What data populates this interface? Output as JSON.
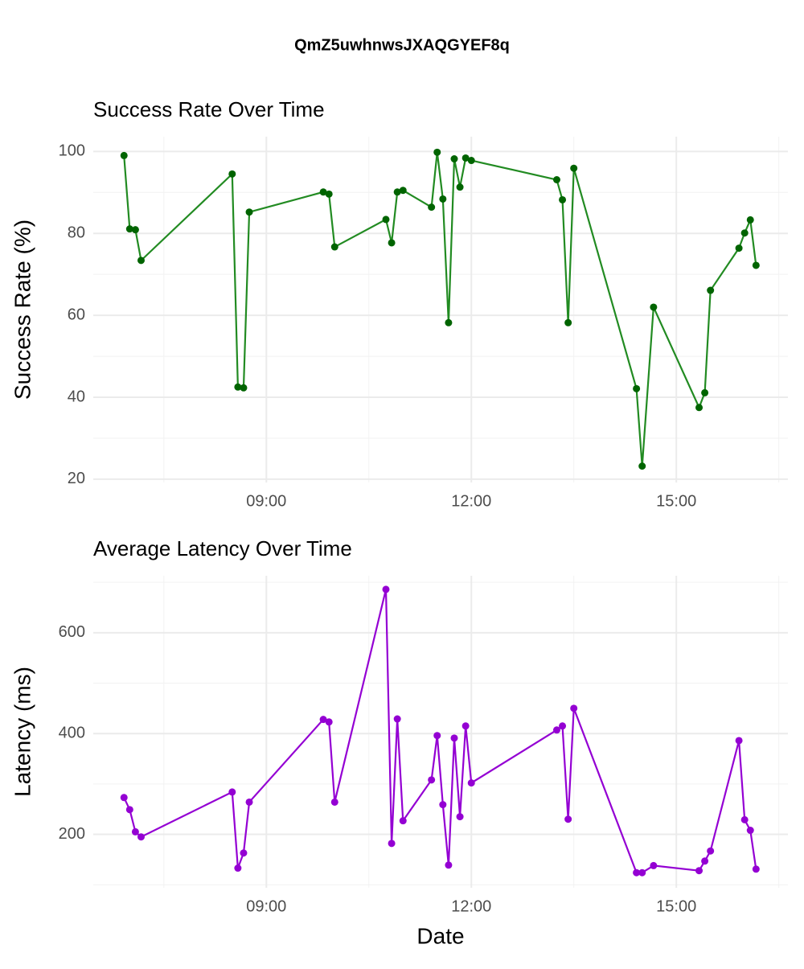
{
  "title": "QmZ5uwhnwsJXAQGYEF8q",
  "chart_data": [
    {
      "type": "line",
      "title": "Success Rate Over Time",
      "ylabel": "Success Rate (%)",
      "x": [
        "06:55",
        "07:00",
        "07:05",
        "07:10",
        "08:30",
        "08:35",
        "08:40",
        "08:45",
        "09:50",
        "09:55",
        "10:00",
        "10:45",
        "10:50",
        "10:55",
        "11:00",
        "11:25",
        "11:30",
        "11:35",
        "11:40",
        "11:45",
        "11:50",
        "11:55",
        "12:00",
        "13:15",
        "13:20",
        "13:25",
        "13:30",
        "14:25",
        "14:30",
        "14:40",
        "15:20",
        "15:25",
        "15:30",
        "15:55",
        "16:00",
        "16:05",
        "16:10"
      ],
      "values": [
        99.0,
        81.1,
        80.9,
        73.4,
        94.5,
        42.5,
        42.3,
        85.2,
        90.1,
        89.6,
        76.7,
        83.4,
        77.7,
        90.1,
        90.5,
        86.4,
        99.8,
        88.4,
        58.2,
        98.2,
        91.3,
        98.4,
        97.8,
        93.1,
        88.2,
        58.2,
        95.9,
        42.1,
        23.2,
        62.0,
        37.5,
        41.1,
        66.1,
        76.4,
        80.1,
        83.3,
        72.2
      ],
      "color": "#228b22",
      "point_color": "#006400",
      "xlim": [
        "06:28",
        "16:38"
      ],
      "xticks": [
        "09:00",
        "12:00",
        "15:00"
      ],
      "ylim": [
        19.2,
        103.6
      ],
      "yticks": [
        20,
        40,
        60,
        80,
        100
      ],
      "grid": true
    },
    {
      "type": "line",
      "title": "Average Latency Over Time",
      "ylabel": "Latency (ms)",
      "xlabel": "Date",
      "x": [
        "06:55",
        "07:00",
        "07:05",
        "07:10",
        "08:30",
        "08:35",
        "08:40",
        "08:45",
        "09:50",
        "09:55",
        "10:00",
        "10:45",
        "10:50",
        "10:55",
        "11:00",
        "11:25",
        "11:30",
        "11:35",
        "11:40",
        "11:45",
        "11:50",
        "11:55",
        "12:00",
        "13:15",
        "13:20",
        "13:25",
        "13:30",
        "14:25",
        "14:30",
        "14:40",
        "15:20",
        "15:25",
        "15:30",
        "15:55",
        "16:00",
        "16:05",
        "16:10"
      ],
      "values": [
        273,
        249,
        205,
        195,
        284,
        133,
        163,
        264,
        428,
        423,
        264,
        686,
        182,
        429,
        227,
        308,
        396,
        259,
        139,
        391,
        235,
        415,
        302,
        407,
        415,
        230,
        450,
        124,
        124,
        138,
        128,
        147,
        167,
        386,
        229,
        208,
        131
      ],
      "color": "#9400d3",
      "point_color": "#9400d3",
      "xlim": [
        "06:28",
        "16:38"
      ],
      "xticks": [
        "09:00",
        "12:00",
        "15:00"
      ],
      "ylim": [
        94,
        713
      ],
      "yticks": [
        200,
        400,
        600
      ],
      "grid": true
    }
  ]
}
